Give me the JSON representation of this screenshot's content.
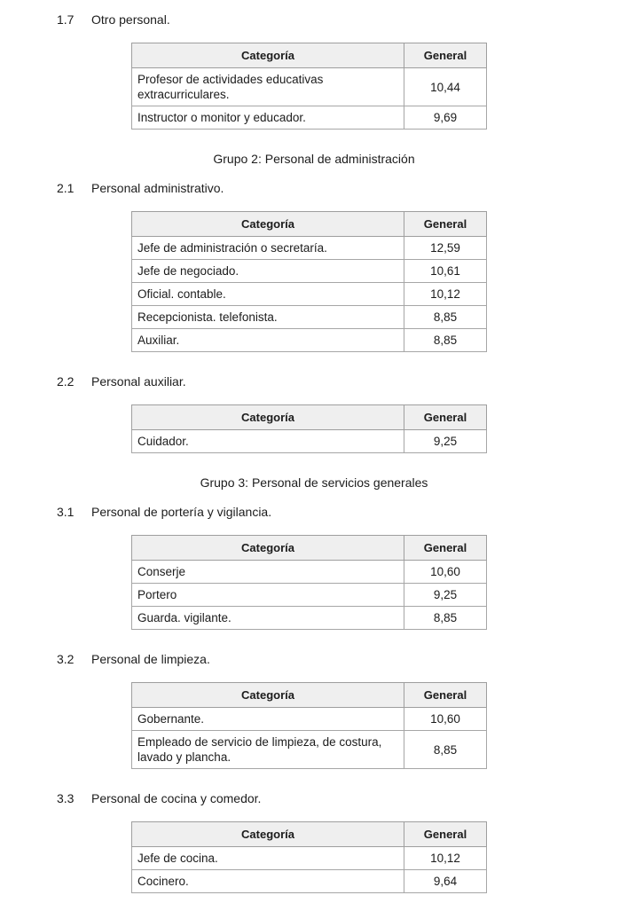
{
  "page": {
    "background": "#ffffff",
    "text_color": "#1c1c1c",
    "table_header_bg": "#efefef",
    "table_border_color": "#a6a6a6"
  },
  "column_headers": {
    "category": "Categoría",
    "general": "General"
  },
  "sections": [
    {
      "kind": "subsection",
      "number": "1.7",
      "title": "Otro personal.",
      "table": {
        "rows": [
          {
            "category": "Profesor de actividades educativas extracurriculares.",
            "general": "10,44"
          },
          {
            "category": "Instructor o monitor y educador.",
            "general": "9,69"
          }
        ]
      }
    },
    {
      "kind": "group",
      "title": "Grupo 2: Personal de administración"
    },
    {
      "kind": "subsection",
      "number": "2.1",
      "title": "Personal administrativo.",
      "table": {
        "rows": [
          {
            "category": "Jefe de administración o secretaría.",
            "general": "12,59"
          },
          {
            "category": "Jefe de negociado.",
            "general": "10,61"
          },
          {
            "category": "Oficial. contable.",
            "general": "10,12"
          },
          {
            "category": "Recepcionista. telefonista.",
            "general": "8,85"
          },
          {
            "category": "Auxiliar.",
            "general": "8,85"
          }
        ]
      }
    },
    {
      "kind": "subsection",
      "number": "2.2",
      "title": "Personal auxiliar.",
      "table": {
        "rows": [
          {
            "category": "Cuidador.",
            "general": "9,25"
          }
        ]
      }
    },
    {
      "kind": "group",
      "title": "Grupo 3: Personal de servicios generales"
    },
    {
      "kind": "subsection",
      "number": "3.1",
      "title": "Personal de portería y vigilancia.",
      "table": {
        "rows": [
          {
            "category": "Conserje",
            "general": "10,60"
          },
          {
            "category": "Portero",
            "general": "9,25"
          },
          {
            "category": "Guarda. vigilante.",
            "general": "8,85"
          }
        ]
      }
    },
    {
      "kind": "subsection",
      "number": "3.2",
      "title": "Personal de limpieza.",
      "table": {
        "rows": [
          {
            "category": "Gobernante.",
            "general": "10,60"
          },
          {
            "category": "Empleado de servicio de limpieza, de costura, lavado y plancha.",
            "general": "8,85"
          }
        ]
      }
    },
    {
      "kind": "subsection",
      "number": "3.3",
      "title": "Personal de cocina y comedor.",
      "table": {
        "rows": [
          {
            "category": "Jefe de cocina.",
            "general": "10,12"
          },
          {
            "category": "Cocinero.",
            "general": "9,64"
          }
        ]
      }
    }
  ]
}
